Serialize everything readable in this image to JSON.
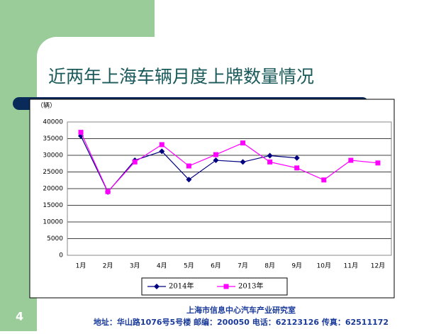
{
  "chart_data": {
    "type": "line",
    "title": "近两年上海车辆月度上牌数量情况",
    "y_label": "（辆）",
    "categories": [
      "1月",
      "2月",
      "3月",
      "4月",
      "5月",
      "6月",
      "7月",
      "8月",
      "9月",
      "10月",
      "11月",
      "12月"
    ],
    "series": [
      {
        "name": "2014年",
        "color": "#000080",
        "marker": "diamond",
        "values": [
          35800,
          19000,
          28500,
          31200,
          22700,
          28500,
          28000,
          29900,
          29200,
          null,
          null,
          null
        ]
      },
      {
        "name": "2013年",
        "color": "#ff00ff",
        "marker": "square",
        "values": [
          36900,
          19100,
          28000,
          33200,
          26800,
          30200,
          33700,
          28000,
          26200,
          22600,
          28500,
          27700
        ]
      }
    ],
    "ylim": [
      0,
      40000
    ],
    "yticks": [
      0,
      5000,
      10000,
      15000,
      20000,
      25000,
      30000,
      35000,
      40000
    ],
    "grid": true,
    "legend": "bottom"
  },
  "page_number": "4",
  "footer": {
    "org": "上海市信息中心汽车产业研究室",
    "address": "地址：华山路1076号5号楼  邮编：200050 电话：62123126 传真：62511172"
  }
}
